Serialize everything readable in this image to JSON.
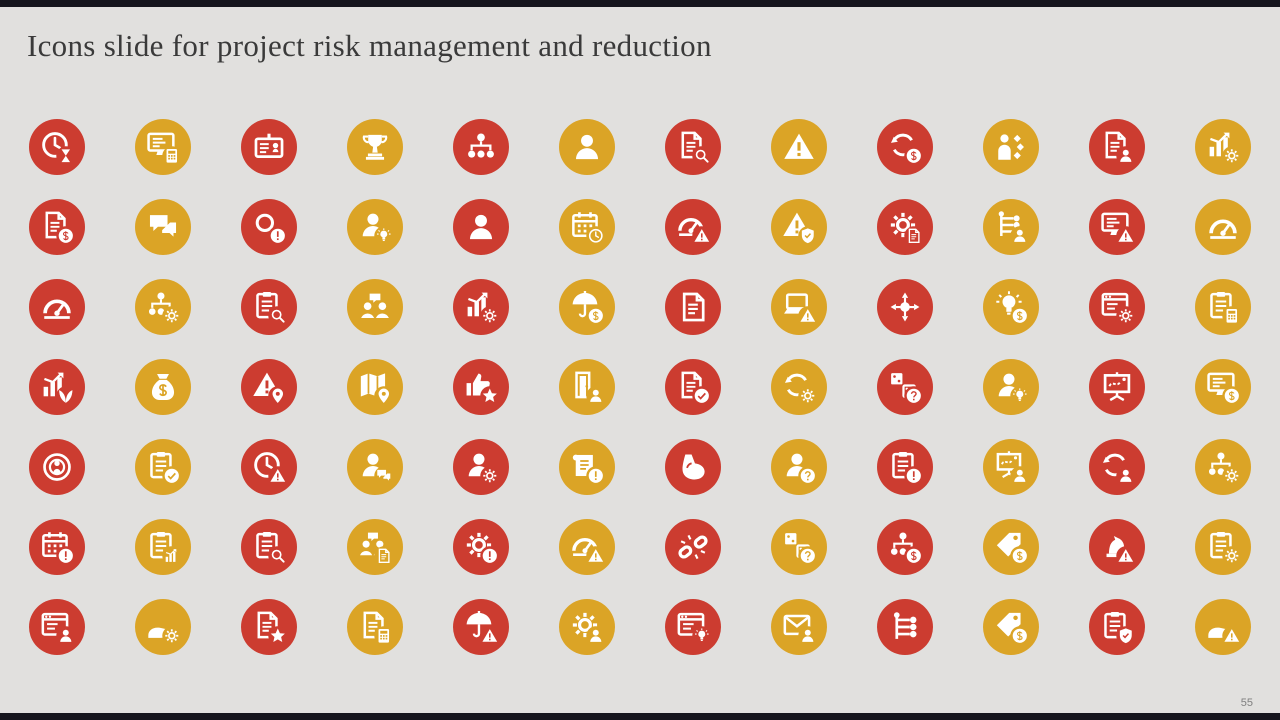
{
  "title": "Icons slide for project risk management and reduction",
  "page_number": "55",
  "colors": {
    "red": "#cc3c30",
    "gold": "#dba426",
    "background": "#e1e0de",
    "top_bottom_bar": "#15151d",
    "title": "#3a3a3a",
    "page_number": "#7f7f7f"
  },
  "grid": {
    "rows": [
      [
        {
          "name": "time-hourglass",
          "glyph": "clock",
          "badge": "hourglass",
          "color": "red"
        },
        {
          "name": "finance-monitor",
          "glyph": "monitor",
          "badge": "calc",
          "color": "gold"
        },
        {
          "name": "id-badge-warning",
          "glyph": "idcard",
          "color": "red"
        },
        {
          "name": "trophy-achievement",
          "glyph": "trophy",
          "color": "gold"
        },
        {
          "name": "team-hierarchy",
          "glyph": "orgchart",
          "color": "red"
        },
        {
          "name": "user-profile",
          "glyph": "person",
          "color": "gold"
        },
        {
          "name": "document-risk-review",
          "glyph": "document",
          "badge": "search",
          "color": "red"
        },
        {
          "name": "warning-triangle",
          "glyph": "warning",
          "color": "gold"
        },
        {
          "name": "currency-exchange",
          "glyph": "sync",
          "badge": "dollar",
          "color": "red"
        },
        {
          "name": "decision-path",
          "glyph": "decision",
          "color": "gold"
        },
        {
          "name": "document-stack-profile",
          "glyph": "document",
          "badge": "person",
          "color": "red"
        },
        {
          "name": "chart-gear-alert",
          "glyph": "chart",
          "badge": "gear",
          "color": "gold"
        }
      ],
      [
        {
          "name": "cost-document",
          "glyph": "document",
          "badge": "dollar",
          "color": "red"
        },
        {
          "name": "discussion-bubbles",
          "glyph": "chat",
          "color": "gold"
        },
        {
          "name": "risk-detection-magnifier",
          "glyph": "search",
          "badge": "exclaim",
          "color": "red"
        },
        {
          "name": "person-idea",
          "glyph": "person",
          "badge": "idea",
          "color": "gold"
        },
        {
          "name": "businessperson",
          "glyph": "person",
          "color": "red"
        },
        {
          "name": "calendar-schedule-clock",
          "glyph": "calendar",
          "badge": "clock",
          "color": "gold"
        },
        {
          "name": "risk-gauge-alert",
          "glyph": "gauge",
          "badge": "warning",
          "color": "red"
        },
        {
          "name": "risk-shield-protection",
          "glyph": "warning",
          "badge": "shield",
          "color": "gold"
        },
        {
          "name": "process-automation",
          "glyph": "gear",
          "badge": "document",
          "color": "red"
        },
        {
          "name": "person-workflow",
          "glyph": "flowtree",
          "badge": "person",
          "color": "gold"
        },
        {
          "name": "monitor-decline-alert",
          "glyph": "monitor",
          "badge": "warning",
          "color": "red"
        },
        {
          "name": "risk-meter",
          "glyph": "gauge",
          "color": "gold"
        }
      ],
      [
        {
          "name": "speedometer",
          "glyph": "gauge",
          "color": "red"
        },
        {
          "name": "gear-network",
          "glyph": "orgchart",
          "badge": "gear",
          "color": "gold"
        },
        {
          "name": "checklist-review",
          "glyph": "clipboard",
          "badge": "search",
          "color": "red"
        },
        {
          "name": "team-discussion",
          "glyph": "meeting",
          "color": "gold"
        },
        {
          "name": "analytics-report-gear",
          "glyph": "chart",
          "badge": "gear",
          "color": "red"
        },
        {
          "name": "insurance-umbrella-funds",
          "glyph": "umbrella",
          "badge": "dollar",
          "color": "gold"
        },
        {
          "name": "document-plain",
          "glyph": "document",
          "color": "red"
        },
        {
          "name": "laptop-alert",
          "glyph": "laptop",
          "badge": "warning",
          "color": "gold"
        },
        {
          "name": "risk-convergence",
          "glyph": "converge",
          "color": "red"
        },
        {
          "name": "idea-investment-network",
          "glyph": "idea",
          "badge": "dollar",
          "color": "gold"
        },
        {
          "name": "system-config-list",
          "glyph": "browser",
          "badge": "gear",
          "color": "red"
        },
        {
          "name": "budget-clipboard-calculator",
          "glyph": "clipboard",
          "badge": "calc",
          "color": "gold"
        }
      ],
      [
        {
          "name": "growth-decline-sprout",
          "glyph": "chart",
          "badge": "leaf",
          "color": "red"
        },
        {
          "name": "money-bag",
          "glyph": "moneybag",
          "color": "gold"
        },
        {
          "name": "location-risk-warning",
          "glyph": "warning",
          "badge": "pin",
          "color": "red"
        },
        {
          "name": "map-location-pin",
          "glyph": "map",
          "badge": "pin",
          "color": "gold"
        },
        {
          "name": "rating-thumbs-up-stars",
          "glyph": "thumb",
          "badge": "star",
          "color": "red"
        },
        {
          "name": "exit-interview-door",
          "glyph": "door",
          "badge": "person",
          "color": "gold"
        },
        {
          "name": "document-verification",
          "glyph": "document",
          "badge": "check",
          "color": "red"
        },
        {
          "name": "process-cycle-gears",
          "glyph": "sync",
          "badge": "gear",
          "color": "gold"
        },
        {
          "name": "uncertainty-dice",
          "glyph": "dice",
          "badge": "question",
          "color": "red"
        },
        {
          "name": "motivational-speaker-idea",
          "glyph": "person",
          "badge": "idea",
          "color": "gold"
        },
        {
          "name": "strategy-route-board",
          "glyph": "board",
          "color": "red"
        },
        {
          "name": "finance-monitor-calculator",
          "glyph": "monitor",
          "badge": "dollar",
          "color": "gold"
        }
      ],
      [
        {
          "name": "target-person",
          "glyph": "target",
          "color": "red"
        },
        {
          "name": "route-clipboard-check",
          "glyph": "clipboard",
          "badge": "check",
          "color": "gold"
        },
        {
          "name": "deadline-stopwatch-alert",
          "glyph": "clock",
          "badge": "warning",
          "color": "red"
        },
        {
          "name": "communication-person-messages",
          "glyph": "person",
          "badge": "chat",
          "color": "gold"
        },
        {
          "name": "skill-management-person",
          "glyph": "person",
          "badge": "gear",
          "color": "red"
        },
        {
          "name": "policy-scroll-alert",
          "glyph": "scroll",
          "badge": "exclaim",
          "color": "gold"
        },
        {
          "name": "strength-muscle",
          "glyph": "muscle",
          "color": "red"
        },
        {
          "name": "thinking-person-question",
          "glyph": "person",
          "badge": "question",
          "color": "gold"
        },
        {
          "name": "issue-checklist-alert",
          "glyph": "clipboard",
          "badge": "exclaim",
          "color": "red"
        },
        {
          "name": "presentation-checklist-board",
          "glyph": "board",
          "badge": "person",
          "color": "gold"
        },
        {
          "name": "person-orbit-cycle",
          "glyph": "sync",
          "badge": "person",
          "color": "red"
        },
        {
          "name": "gear-hierarchy",
          "glyph": "orgchart",
          "badge": "gear",
          "color": "gold"
        }
      ],
      [
        {
          "name": "deadline-calendar-alert",
          "glyph": "calendar",
          "badge": "exclaim",
          "color": "red"
        },
        {
          "name": "progress-checklist-chart",
          "glyph": "clipboard",
          "badge": "chart",
          "color": "gold"
        },
        {
          "name": "audit-clipboard-magnifier",
          "glyph": "clipboard",
          "badge": "search",
          "color": "red"
        },
        {
          "name": "document-exchange-team",
          "glyph": "meeting",
          "badge": "document",
          "color": "gold"
        },
        {
          "name": "person-gear-alert",
          "glyph": "gear",
          "badge": "exclaim",
          "color": "red"
        },
        {
          "name": "speed-risk-gauge",
          "glyph": "gauge",
          "badge": "warning",
          "color": "gold"
        },
        {
          "name": "broken-chain-link",
          "glyph": "chain",
          "color": "red"
        },
        {
          "name": "probability-dice-question",
          "glyph": "dice",
          "badge": "question",
          "color": "gold"
        },
        {
          "name": "resource-hierarchy-money",
          "glyph": "orgchart",
          "badge": "dollar",
          "color": "red"
        },
        {
          "name": "price-tag-dollar",
          "glyph": "tag",
          "badge": "dollar",
          "color": "gold"
        },
        {
          "name": "strategic-risk-knight",
          "glyph": "knight",
          "badge": "warning",
          "color": "red"
        },
        {
          "name": "managed-checklist-gear",
          "glyph": "clipboard",
          "badge": "gear",
          "color": "gold"
        }
      ],
      [
        {
          "name": "user-verification-browser",
          "glyph": "browser",
          "badge": "person",
          "color": "red"
        },
        {
          "name": "hand-gear-risk",
          "glyph": "hand",
          "badge": "gear",
          "color": "gold"
        },
        {
          "name": "priority-star-checklist",
          "glyph": "document",
          "badge": "star",
          "color": "red"
        },
        {
          "name": "invoice-calculator",
          "glyph": "document",
          "badge": "calc",
          "color": "gold"
        },
        {
          "name": "umbrella-risk-alert",
          "glyph": "umbrella",
          "badge": "warning",
          "color": "red"
        },
        {
          "name": "gear-person-risk",
          "glyph": "gear",
          "badge": "person",
          "color": "gold"
        },
        {
          "name": "web-idea-config",
          "glyph": "browser",
          "badge": "idea",
          "color": "red"
        },
        {
          "name": "email-sync-person",
          "glyph": "envelope",
          "badge": "person",
          "color": "gold"
        },
        {
          "name": "decision-flow-tree",
          "glyph": "flowtree",
          "color": "red"
        },
        {
          "name": "cost-strategy-tag",
          "glyph": "tag",
          "badge": "dollar",
          "color": "gold"
        },
        {
          "name": "compliance-checklist-shield",
          "glyph": "clipboard",
          "badge": "shield",
          "color": "red"
        },
        {
          "name": "hand-gear-alert",
          "glyph": "hand",
          "badge": "warning",
          "color": "gold"
        }
      ]
    ]
  }
}
